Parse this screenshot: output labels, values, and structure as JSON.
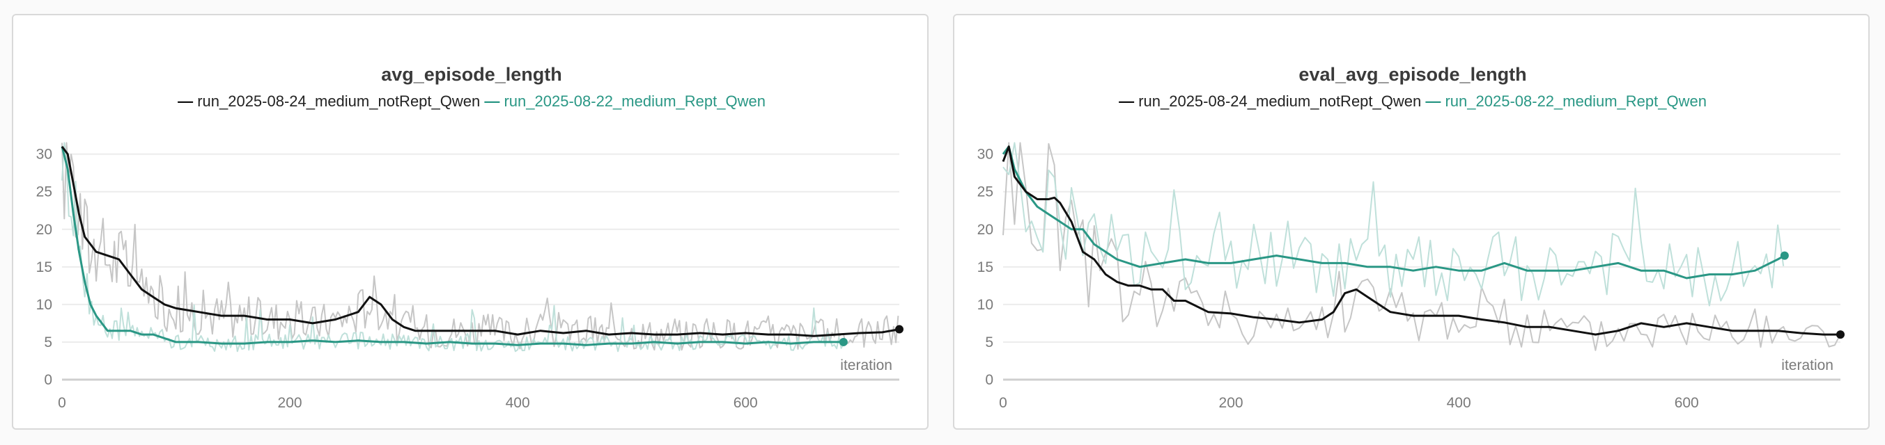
{
  "colors": {
    "run_a": "#111111",
    "run_a_raw": "#c6c6c6",
    "run_b": "#2a9785",
    "run_b_raw": "#bfe0da",
    "grid": "#ececec",
    "axis": "#cfcfcf",
    "panel_border": "#d9d9d9"
  },
  "chart_data": [
    {
      "type": "line",
      "title": "avg_episode_length",
      "xlabel": "iteration",
      "ylabel": "",
      "xlim": [
        0,
        735
      ],
      "ylim": [
        0,
        32
      ],
      "xticks": [
        "0",
        "200",
        "400",
        "600"
      ],
      "yticks": [
        "0",
        "5",
        "10",
        "15",
        "20",
        "25",
        "30"
      ],
      "grid": true,
      "legend": "top-center",
      "series": [
        {
          "name": "run_2025-08-24_medium_notRept_Qwen",
          "color": "#111111",
          "x": [
            0,
            5,
            10,
            15,
            20,
            30,
            40,
            50,
            60,
            70,
            80,
            90,
            100,
            120,
            140,
            160,
            180,
            200,
            220,
            240,
            260,
            270,
            280,
            290,
            300,
            310,
            320,
            340,
            360,
            380,
            400,
            420,
            440,
            460,
            480,
            500,
            520,
            540,
            560,
            580,
            600,
            620,
            640,
            660,
            680,
            700,
            720,
            735
          ],
          "y": [
            31,
            30,
            26,
            22,
            19,
            17,
            16.5,
            16,
            14,
            12,
            11,
            10,
            9.5,
            9,
            8.5,
            8.5,
            8,
            8,
            7.5,
            8,
            9,
            11,
            10,
            8,
            7,
            6.5,
            6.5,
            6.5,
            6.5,
            6.5,
            6,
            6.5,
            6.2,
            6.5,
            6,
            6.2,
            6,
            6,
            6.2,
            6,
            6.2,
            6,
            6,
            5.8,
            6,
            6.2,
            6.3,
            6.7
          ]
        },
        {
          "name": "run_2025-08-22_medium_Rept_Qwen",
          "color": "#2a9785",
          "x": [
            0,
            5,
            10,
            15,
            20,
            25,
            30,
            40,
            50,
            60,
            70,
            80,
            100,
            120,
            140,
            160,
            180,
            200,
            220,
            240,
            260,
            280,
            300,
            320,
            340,
            360,
            380,
            400,
            420,
            440,
            460,
            480,
            500,
            520,
            540,
            560,
            580,
            600,
            620,
            640,
            660,
            686
          ],
          "y": [
            31,
            28,
            22,
            17,
            13,
            10,
            8.5,
            6.5,
            6.5,
            6.5,
            6,
            6,
            5,
            5,
            4.8,
            4.8,
            5,
            5,
            5.2,
            5,
            5.2,
            5,
            5,
            4.8,
            5,
            4.8,
            4.8,
            4.6,
            4.8,
            4.8,
            4.6,
            4.8,
            4.8,
            5,
            4.8,
            5,
            5,
            4.8,
            5,
            4.8,
            5,
            5
          ]
        }
      ]
    },
    {
      "type": "line",
      "title": "eval_avg_episode_length",
      "xlabel": "iteration",
      "ylabel": "",
      "xlim": [
        0,
        735
      ],
      "ylim": [
        0,
        32
      ],
      "xticks": [
        "0",
        "200",
        "400",
        "600"
      ],
      "yticks": [
        "0",
        "5",
        "10",
        "15",
        "20",
        "25",
        "30"
      ],
      "grid": true,
      "legend": "top-center",
      "series": [
        {
          "name": "run_2025-08-24_medium_notRept_Qwen",
          "color": "#111111",
          "x": [
            0,
            5,
            10,
            20,
            30,
            40,
            45,
            50,
            60,
            70,
            80,
            90,
            100,
            110,
            120,
            130,
            140,
            150,
            160,
            180,
            200,
            220,
            240,
            260,
            280,
            290,
            300,
            310,
            320,
            340,
            360,
            380,
            400,
            420,
            440,
            460,
            480,
            500,
            520,
            540,
            560,
            580,
            600,
            620,
            640,
            660,
            680,
            700,
            720,
            735
          ],
          "y": [
            29,
            31,
            27,
            25,
            24,
            24,
            24.2,
            23.5,
            21,
            17,
            16,
            14,
            13,
            12.5,
            12.5,
            12,
            12,
            10.5,
            10.5,
            9,
            8.8,
            8.3,
            8,
            7.6,
            8,
            9,
            11.5,
            12,
            11,
            9,
            8.5,
            8.5,
            8.5,
            8,
            7.6,
            7,
            7,
            6.5,
            6,
            6.5,
            7.5,
            7,
            7.5,
            7,
            6.5,
            6.5,
            6.5,
            6.2,
            6,
            6
          ]
        },
        {
          "name": "run_2025-08-22_medium_Rept_Qwen",
          "color": "#2a9785",
          "x": [
            0,
            5,
            10,
            20,
            30,
            40,
            50,
            60,
            70,
            80,
            90,
            100,
            120,
            140,
            160,
            180,
            200,
            220,
            240,
            260,
            280,
            300,
            320,
            340,
            360,
            380,
            400,
            420,
            440,
            460,
            480,
            500,
            520,
            540,
            560,
            580,
            600,
            620,
            640,
            660,
            680,
            686
          ],
          "y": [
            30,
            31,
            28,
            25,
            23,
            22,
            21,
            20,
            20,
            18,
            17,
            16,
            15,
            15.5,
            16,
            15.5,
            15.5,
            16,
            16.5,
            16,
            15.5,
            15.5,
            15,
            15,
            14.5,
            15,
            14.5,
            14.5,
            15.5,
            14.5,
            14.5,
            14.5,
            15,
            15.5,
            14.5,
            14.5,
            13.5,
            14,
            14,
            14.5,
            16,
            16.5
          ]
        }
      ]
    }
  ]
}
